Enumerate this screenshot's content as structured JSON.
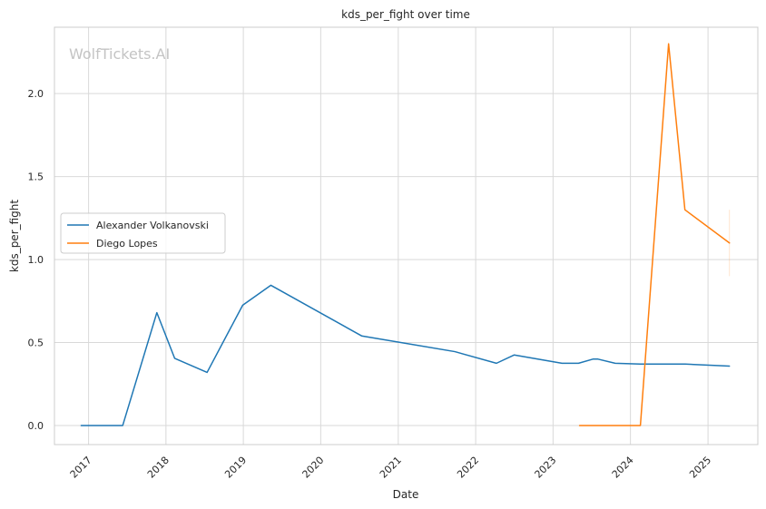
{
  "chart_data": {
    "type": "line",
    "title": "kds_per_fight over time",
    "xlabel": "Date",
    "ylabel": "kds_per_fight",
    "watermark": "WolfTickets.AI",
    "x_type": "date",
    "xlim": [
      "2016-07-24",
      "2025-08-24"
    ],
    "ylim": [
      -0.115,
      2.4
    ],
    "x_ticks": [
      "2017",
      "2018",
      "2019",
      "2020",
      "2021",
      "2022",
      "2023",
      "2024",
      "2025"
    ],
    "y_ticks": [
      "0.0",
      "0.5",
      "1.0",
      "1.5",
      "2.0"
    ],
    "grid": true,
    "legend_position": "center-left",
    "series": [
      {
        "name": "Alexander Volkanovski",
        "color": "#1f77b4",
        "points": [
          {
            "x": "2016-11-27",
            "y": 0.0
          },
          {
            "x": "2017-06-11",
            "y": 0.0
          },
          {
            "x": "2017-11-19",
            "y": 0.68
          },
          {
            "x": "2018-02-11",
            "y": 0.405
          },
          {
            "x": "2018-07-14",
            "y": 0.32
          },
          {
            "x": "2018-12-29",
            "y": 0.725
          },
          {
            "x": "2019-05-11",
            "y": 0.845
          },
          {
            "x": "2020-07-12",
            "y": 0.54
          },
          {
            "x": "2021-09-25",
            "y": 0.445
          },
          {
            "x": "2022-04-09",
            "y": 0.375
          },
          {
            "x": "2022-07-02",
            "y": 0.425
          },
          {
            "x": "2023-02-12",
            "y": 0.375
          },
          {
            "x": "2023-05-01",
            "y": 0.375
          },
          {
            "x": "2023-07-08",
            "y": 0.4
          },
          {
            "x": "2023-08-01",
            "y": 0.4
          },
          {
            "x": "2023-10-21",
            "y": 0.375
          },
          {
            "x": "2024-02-17",
            "y": 0.37
          },
          {
            "x": "2024-09-15",
            "y": 0.37
          },
          {
            "x": "2025-04-12",
            "y": 0.358
          }
        ]
      },
      {
        "name": "Diego Lopes",
        "color": "#ff7f0e",
        "points": [
          {
            "x": "2023-05-06",
            "y": 0.0
          },
          {
            "x": "2024-02-17",
            "y": 0.0
          },
          {
            "x": "2024-06-29",
            "y": 2.3
          },
          {
            "x": "2024-09-14",
            "y": 1.3
          },
          {
            "x": "2025-04-12",
            "y": 1.1
          }
        ],
        "error_bar": {
          "x": "2025-04-12",
          "low": 0.9,
          "high": 1.3
        }
      }
    ]
  }
}
